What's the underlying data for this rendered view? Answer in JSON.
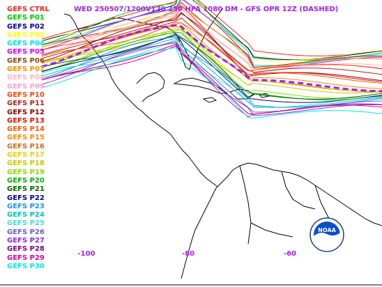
{
  "title": "WED 250507/1200V120  250 HPA 1080 DM - GFS OPR 12Z (DASHED)",
  "members": [
    {
      "label": "GEFS CTRL",
      "color": "#ff2020"
    },
    {
      "label": "GEFS P01",
      "color": "#00c800"
    },
    {
      "label": "GEFS P02",
      "color": "#0000a0"
    },
    {
      "label": "GEFS P03",
      "color": "#ffff00"
    },
    {
      "label": "GEFS P04",
      "color": "#00e0e0"
    },
    {
      "label": "GEFS P05",
      "color": "#e000e0"
    },
    {
      "label": "GEFS P06",
      "color": "#8b4513"
    },
    {
      "label": "GEFS P07",
      "color": "#ff8c00"
    },
    {
      "label": "GEFS P08",
      "color": "#ffb6c1"
    },
    {
      "label": "GEFS P09",
      "color": "#ffa0c8"
    },
    {
      "label": "GEFS P10",
      "color": "#ff4500"
    },
    {
      "label": "GEFS P11",
      "color": "#b22222"
    },
    {
      "label": "GEFS P12",
      "color": "#8b0000"
    },
    {
      "label": "GEFS P13",
      "color": "#e01000"
    },
    {
      "label": "GEFS P14",
      "color": "#ff5500"
    },
    {
      "label": "GEFS P15",
      "color": "#ff8800"
    },
    {
      "label": "GEFS P16",
      "color": "#d2691e"
    },
    {
      "label": "GEFS P17",
      "color": "#e8d000"
    },
    {
      "label": "GEFS P18",
      "color": "#c8c800"
    },
    {
      "label": "GEFS P19",
      "color": "#80e000"
    },
    {
      "label": "GEFS P20",
      "color": "#00b000"
    },
    {
      "label": "GEFS P21",
      "color": "#006400"
    },
    {
      "label": "GEFS P22",
      "color": "#00008b"
    },
    {
      "label": "GEFS P23",
      "color": "#1e90ff"
    },
    {
      "label": "GEFS P24",
      "color": "#00c0c0"
    },
    {
      "label": "GEFS P25",
      "color": "#40e0d0"
    },
    {
      "label": "GEFS P26",
      "color": "#6a5acd"
    },
    {
      "label": "GEFS P27",
      "color": "#8a2be2"
    },
    {
      "label": "GEFS P28",
      "color": "#800080"
    },
    {
      "label": "GEFS P29",
      "color": "#e000a0"
    },
    {
      "label": "GEFS P30",
      "color": "#00e8e8"
    }
  ],
  "opr_color": "#a020f0",
  "xticks": [
    {
      "label": "-100",
      "lon": -100
    },
    {
      "label": "-80",
      "lon": -80
    },
    {
      "label": "-60",
      "lon": -60
    }
  ],
  "logo": "NOAA",
  "logo_name": "noaa-logo"
}
